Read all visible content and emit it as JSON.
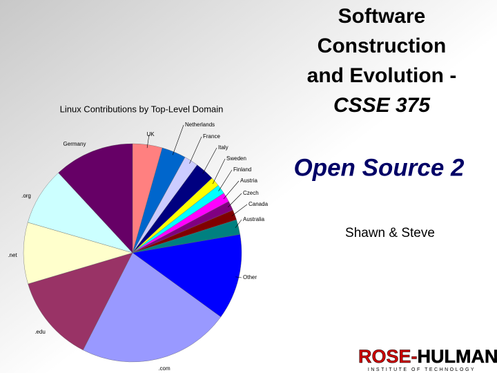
{
  "slide": {
    "title_lines": [
      "Software",
      "Construction",
      "and Evolution -",
      "CSSE 375"
    ],
    "subtitle": "Open Source 2",
    "authors": "Shawn & Steve",
    "logo": {
      "part1": "ROSE-",
      "part2": "HULMAN",
      "tagline": "INSTITUTE OF TECHNOLOGY"
    }
  },
  "chart_data": {
    "type": "pie",
    "title": "Linux Contributions by Top-Level Domain",
    "categories": [
      "UK",
      "Netherlands",
      "France",
      "Italy",
      "Sweden",
      "Finland",
      "Austria",
      "Czech",
      "Canada",
      "Australia",
      "Other",
      ".com",
      ".edu",
      ".net",
      ".org",
      "Germany"
    ],
    "values": [
      4.4,
      3.6,
      2.1,
      2.9,
      1.4,
      1.4,
      1.4,
      1.4,
      1.5,
      2.2,
      12.7,
      22.5,
      12.9,
      9.1,
      8.6,
      11.9
    ],
    "colors": [
      "#ff8080",
      "#0066cc",
      "#ccccff",
      "#000080",
      "#ffff00",
      "#00ffff",
      "#ff00ff",
      "#800080",
      "#800000",
      "#008080",
      "#0000ff",
      "#9999ff",
      "#993366",
      "#ffffcc",
      "#ccffff",
      "#660066"
    ]
  }
}
